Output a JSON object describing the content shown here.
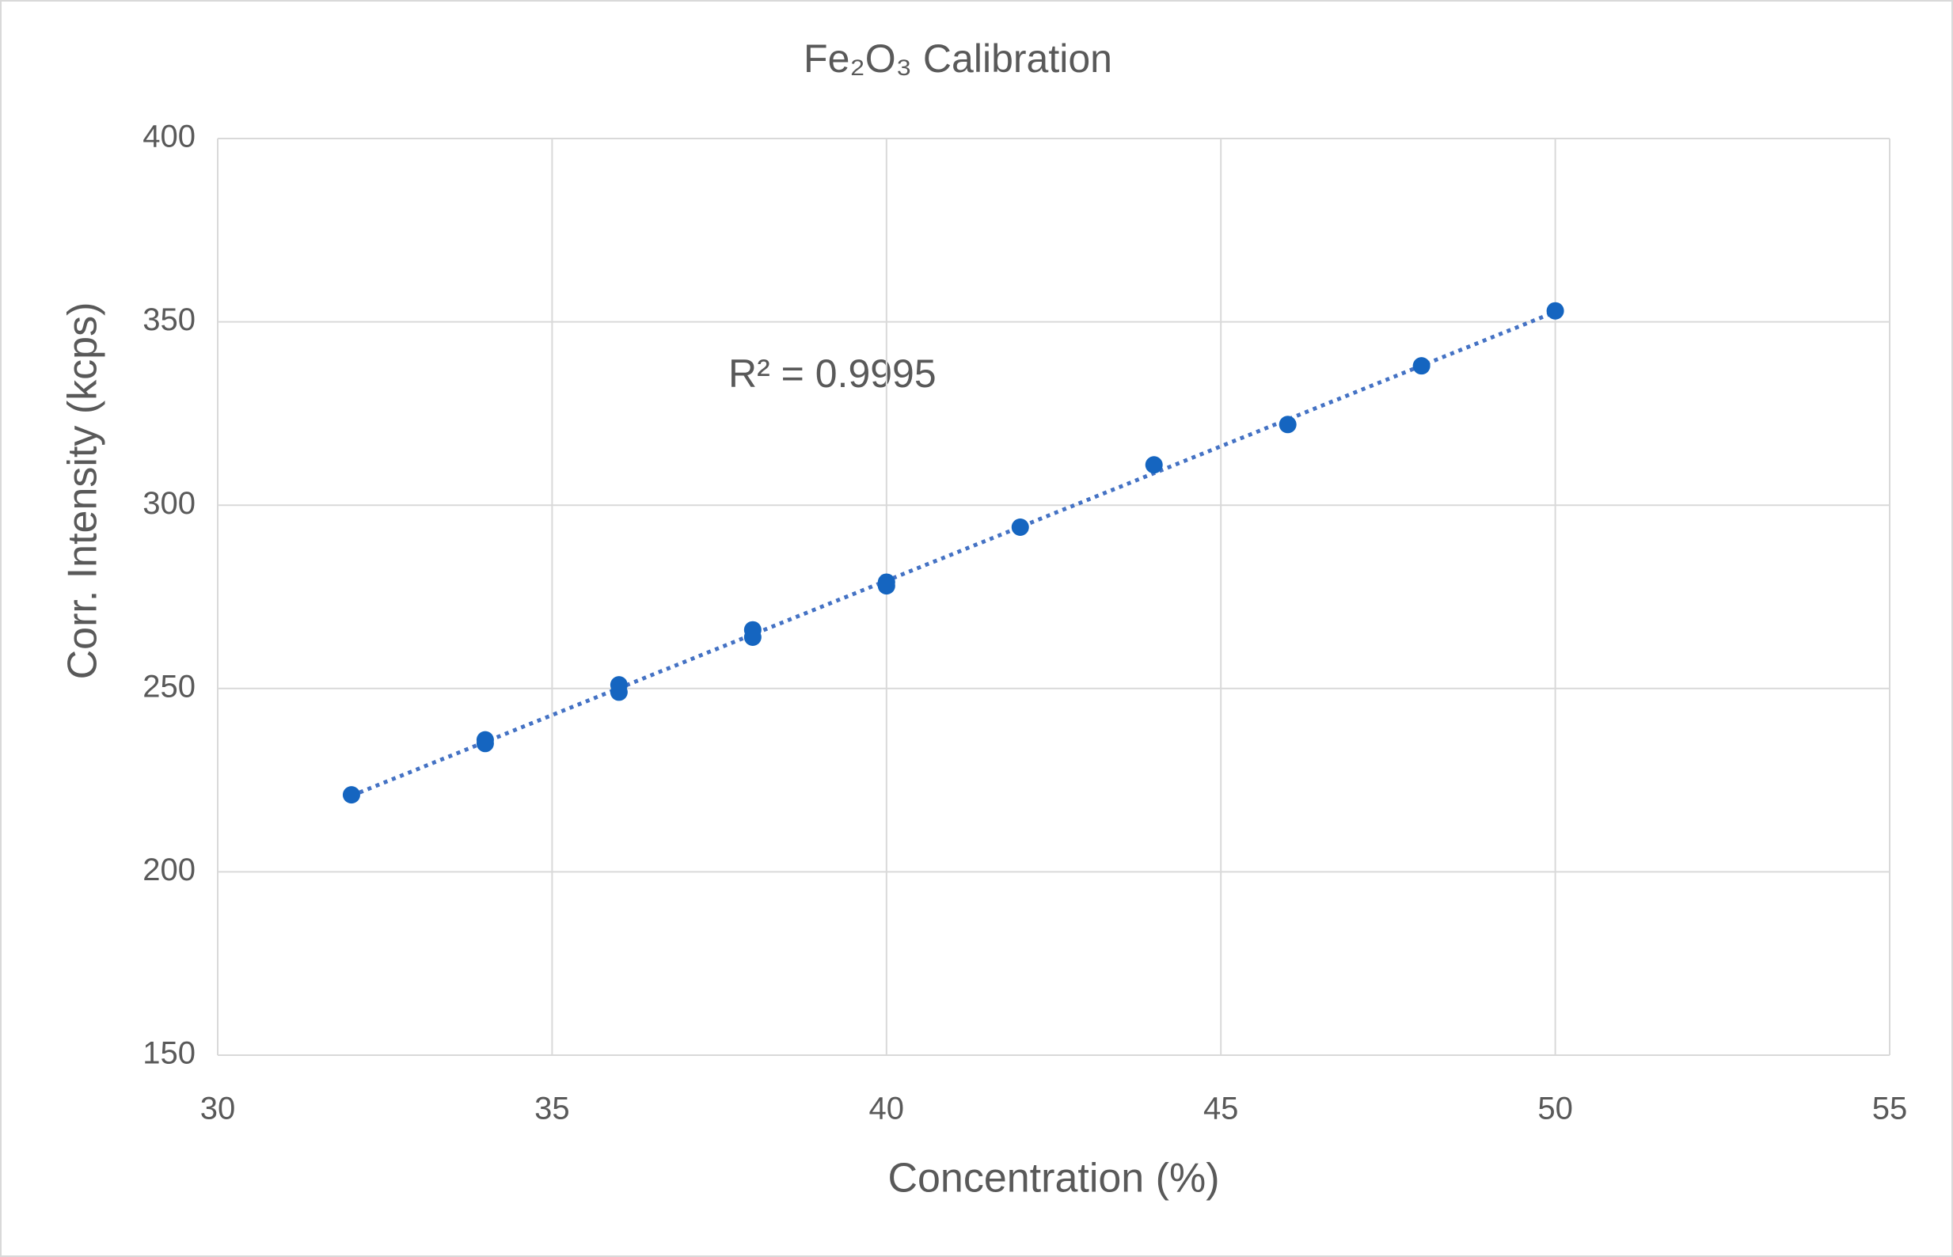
{
  "chart_data": {
    "type": "scatter",
    "title": "Fe₂O₃ Calibration",
    "x_label": "Concentration (%)",
    "y_label": "Corr. Intensity (kcps)",
    "annotation": "R² = 0.9995",
    "x": [
      32,
      34,
      34,
      36,
      36,
      38,
      38,
      40,
      40,
      42,
      44,
      46,
      48,
      50
    ],
    "values": [
      221,
      236,
      235,
      251,
      249,
      266,
      264,
      279,
      278,
      294,
      311,
      322,
      338,
      353
    ],
    "color": "#1565c0",
    "trendline_color": "#4472c4",
    "trendline": true,
    "xlim": [
      30,
      55
    ],
    "xticks": [
      30,
      35,
      40,
      45,
      50,
      55
    ],
    "ylim": [
      150,
      400
    ],
    "yticks": [
      150,
      200,
      250,
      300,
      350,
      400
    ],
    "grid": true
  }
}
